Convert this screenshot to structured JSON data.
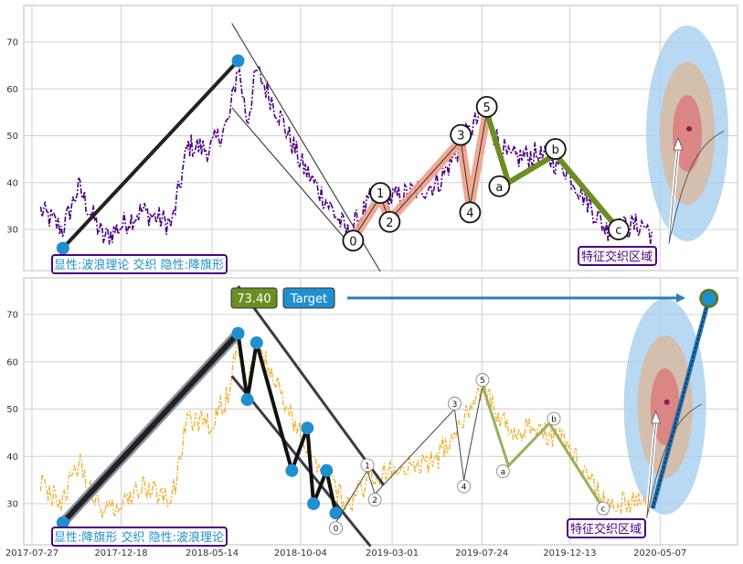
{
  "chart_data": [
    {
      "type": "line",
      "panel": "top",
      "ylim": [
        20,
        77
      ],
      "yticks": [
        30,
        40,
        50,
        60,
        70
      ],
      "grid": true,
      "price_series_color": "#4b0082",
      "price_keypoints": [
        [
          "2017-08-10",
          34
        ],
        [
          "2017-09-15",
          30
        ],
        [
          "2017-10-10",
          39
        ],
        [
          "2017-11-20",
          28
        ],
        [
          "2018-01-20",
          34
        ],
        [
          "2018-03-10",
          31
        ],
        [
          "2018-04-05",
          48
        ],
        [
          "2018-05-10",
          47
        ],
        [
          "2018-06-10",
          53
        ],
        [
          "2018-06-25",
          65
        ],
        [
          "2018-07-10",
          53
        ],
        [
          "2018-07-25",
          64
        ],
        [
          "2018-09-05",
          53
        ],
        [
          "2018-10-05",
          44
        ],
        [
          "2018-11-15",
          36
        ],
        [
          "2018-12-20",
          29
        ],
        [
          "2019-01-25",
          36
        ],
        [
          "2019-03-15",
          37
        ],
        [
          "2019-05-15",
          40
        ],
        [
          "2019-06-20",
          48
        ],
        [
          "2019-07-25",
          55
        ],
        [
          "2019-09-05",
          45
        ],
        [
          "2019-10-20",
          46
        ],
        [
          "2019-12-01",
          44
        ],
        [
          "2020-02-10",
          30
        ],
        [
          "2020-04-10",
          31
        ],
        [
          "2020-04-25",
          29
        ]
      ],
      "trend_segment": [
        [
          "2017-09-15",
          26
        ],
        [
          "2018-06-25",
          66
        ]
      ],
      "channel_lines": [
        [
          [
            "2018-06-15",
            74
          ],
          [
            "2019-02-10",
            21
          ]
        ],
        [
          [
            "2018-06-15",
            56
          ],
          [
            "2018-12-28",
            26
          ]
        ]
      ],
      "wave_points": [
        {
          "label": "0",
          "x": "2018-12-28",
          "y": 28
        },
        {
          "label": "1",
          "x": "2019-02-10",
          "y": 37
        },
        {
          "label": "2",
          "x": "2019-02-25",
          "y": 32
        },
        {
          "label": "3",
          "x": "2019-06-20",
          "y": 49
        },
        {
          "label": "4",
          "x": "2019-07-05",
          "y": 35
        },
        {
          "label": "5",
          "x": "2019-08-01",
          "y": 55
        },
        {
          "label": "a",
          "x": "2019-09-05",
          "y": 40
        },
        {
          "label": "b",
          "x": "2019-11-20",
          "y": 46
        },
        {
          "label": "c",
          "x": "2020-03-01",
          "y": 30
        }
      ],
      "circled_labels": [
        "0",
        "1",
        "2",
        "3",
        "4",
        "5",
        "a",
        "b",
        "c"
      ],
      "target_zone": {
        "x": "2020-06-20",
        "y": 50.5,
        "center_color": "#a0145a"
      },
      "bottom_label": "显性:波浪理论 交织 隐性:降旗形",
      "zone_label": "特征交织区域"
    },
    {
      "type": "line",
      "panel": "bottom",
      "ylim": [
        20,
        77
      ],
      "yticks": [
        30,
        40,
        50,
        60,
        70
      ],
      "grid": true,
      "price_series_color": "#f0b030",
      "x_tick_labels": [
        "2017-07-27",
        "2017-12-18",
        "2018-05-14",
        "2018-10-04",
        "2019-03-01",
        "2019-07-24",
        "2019-12-13",
        "2020-05-07"
      ],
      "trend_segment": [
        [
          "2017-09-15",
          26
        ],
        [
          "2018-06-25",
          66
        ]
      ],
      "flag_points": [
        [
          "2018-06-25",
          66
        ],
        [
          "2018-07-10",
          52
        ],
        [
          "2018-07-25",
          64
        ],
        [
          "2018-09-20",
          37
        ],
        [
          "2018-10-15",
          46
        ],
        [
          "2018-10-25",
          30
        ],
        [
          "2018-11-15",
          37
        ],
        [
          "2018-11-30",
          28
        ]
      ],
      "channel_lines": [
        [
          [
            "2018-06-25",
            76
          ],
          [
            "2019-02-15",
            34
          ]
        ],
        [
          [
            "2018-06-15",
            57
          ],
          [
            "2019-01-25",
            21
          ]
        ]
      ],
      "wave_points": [
        {
          "label": "0",
          "x": "2018-11-30",
          "y": 26
        },
        {
          "label": "1",
          "x": "2019-01-20",
          "y": 37
        },
        {
          "label": "2",
          "x": "2019-02-01",
          "y": 32
        },
        {
          "label": "3",
          "x": "2019-06-10",
          "y": 50
        },
        {
          "label": "4",
          "x": "2019-06-25",
          "y": 35
        },
        {
          "label": "5",
          "x": "2019-07-25",
          "y": 55
        },
        {
          "label": "a",
          "x": "2019-09-05",
          "y": 38
        },
        {
          "label": "b",
          "x": "2019-11-10",
          "y": 47
        },
        {
          "label": "c",
          "x": "2020-02-05",
          "y": 29
        }
      ],
      "circled_labels": [
        "0",
        "1",
        "2",
        "3",
        "4",
        "5",
        "a",
        "b",
        "c"
      ],
      "target_value": "73.40",
      "target_label": "Target",
      "target_point": {
        "x": "2020-07-25",
        "y": 73.4
      },
      "target_zone": {
        "x": "2020-05-15",
        "y": 50.5,
        "center_color": "#a0145a"
      },
      "bottom_label": "显性:降旗形 交织 隐性:波浪理论",
      "zone_label": "特征交织区域"
    }
  ],
  "colors": {
    "label_border": "#4b0082",
    "label_text": "#1e90c8",
    "dot_blue": "#1e90d0",
    "target_value_bg": "#6b8e23",
    "target_label_bg": "#1e90d0",
    "arrow_blue": "#2a7fb8",
    "wave_top_ramp": "#f0a088",
    "wave_top_corr": "#6b8e23",
    "wave_bottom": "#9aaf60"
  }
}
